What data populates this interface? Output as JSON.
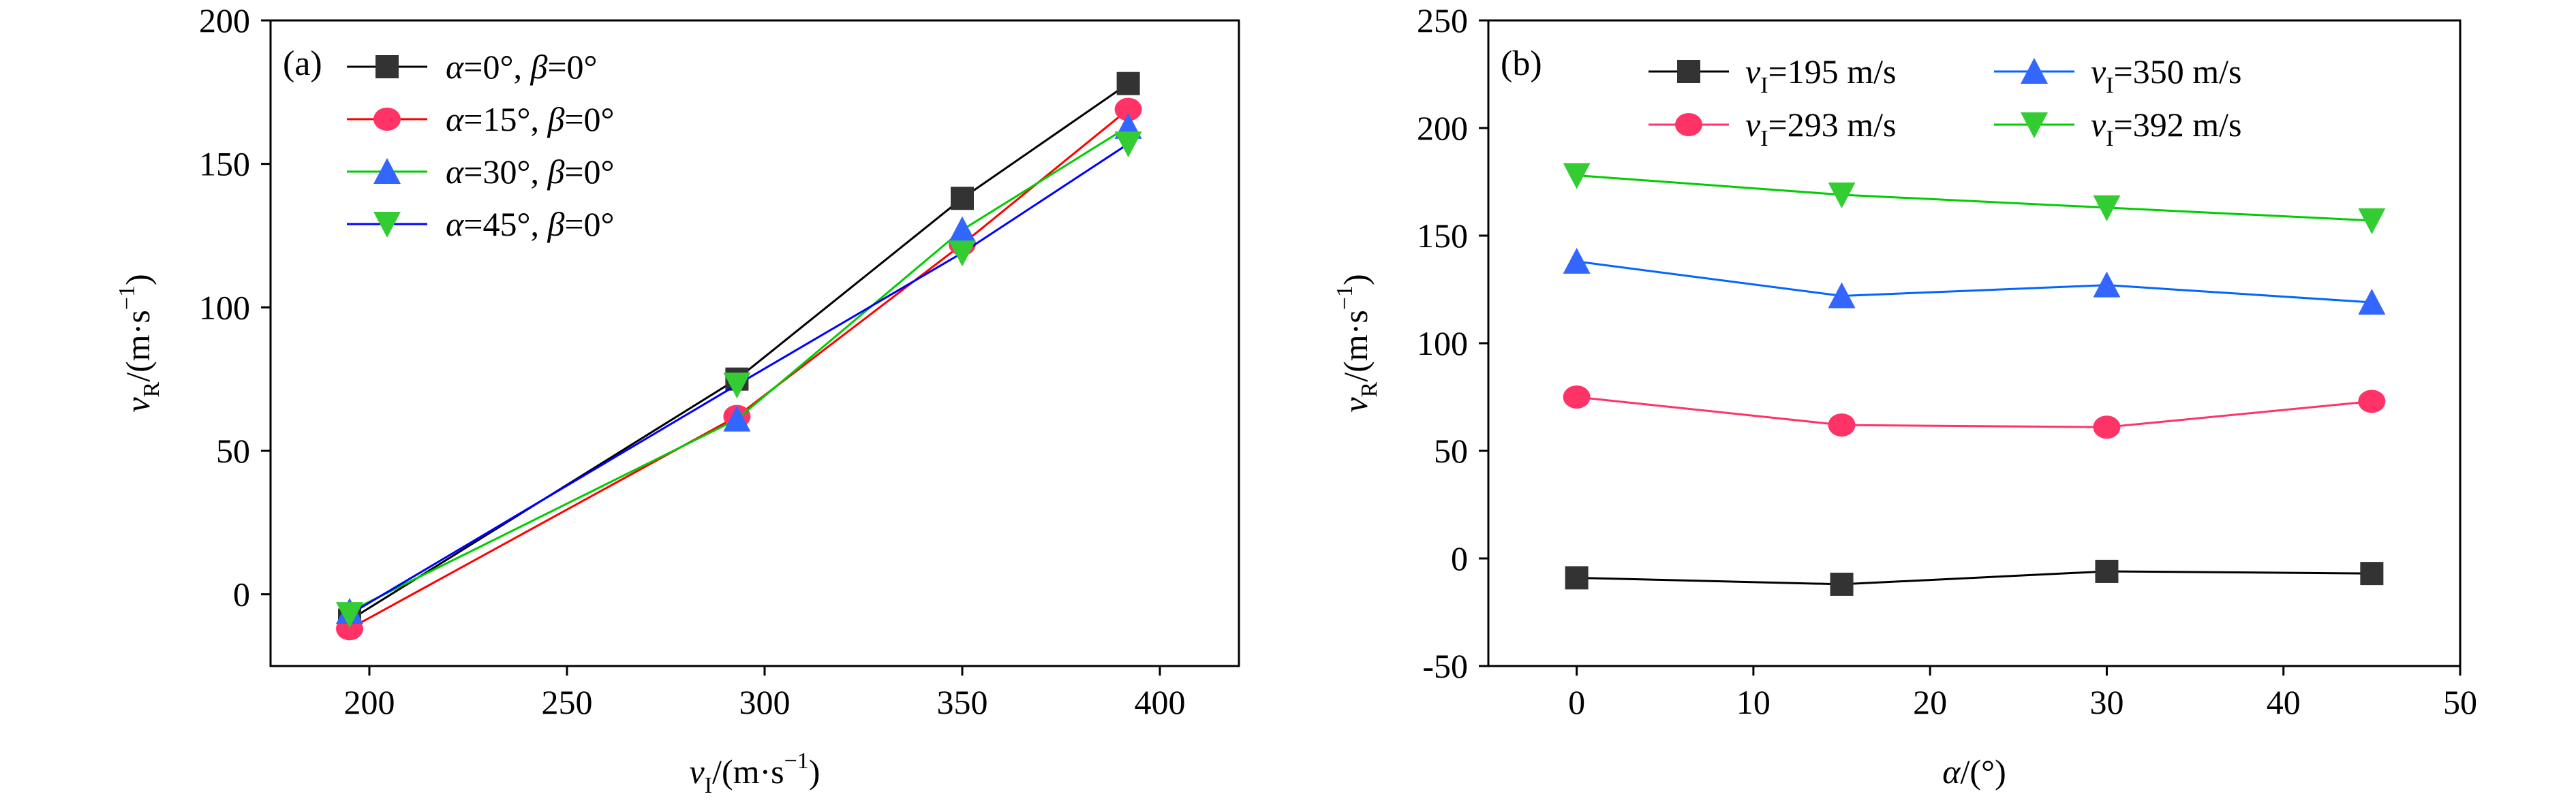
{
  "chart_data": [
    {
      "type": "line",
      "panel_label": "(a)",
      "xlabel": {
        "var": "v",
        "sub": "I",
        "unit": "/(m·s",
        "exp": "−1",
        "close": ")"
      },
      "ylabel": {
        "var": "v",
        "sub": "R",
        "unit": "/(m·s",
        "exp": "−1",
        "close": ")"
      },
      "xlim": [
        175,
        420
      ],
      "ylim": [
        -25,
        200
      ],
      "xticks": [
        200,
        250,
        300,
        350,
        400
      ],
      "yticks": [
        0,
        50,
        100,
        150,
        200
      ],
      "x": [
        195,
        293,
        350,
        392
      ],
      "legend_position": "top-left",
      "series": [
        {
          "name": "α=0°, β=0°",
          "alpha": "α",
          "eq1": "=0°, ",
          "beta": "β",
          "eq2": "=0°",
          "color": "#000000",
          "marker": "square",
          "values": [
            -9,
            75,
            138,
            178
          ]
        },
        {
          "name": "α=15°, β=0°",
          "alpha": "α",
          "eq1": "=15°, ",
          "beta": "β",
          "eq2": "=0°",
          "color": "#ff0000",
          "marker": "circle",
          "values": [
            -12,
            62,
            122,
            169
          ]
        },
        {
          "name": "α=30°, β=0°",
          "alpha": "α",
          "eq1": "=30°, ",
          "beta": "β",
          "eq2": "=0°",
          "color": "#00cc00",
          "marker": "triangle-up",
          "values": [
            -6,
            61,
            127,
            163
          ]
        },
        {
          "name": "α=45°, β=0°",
          "alpha": "α",
          "eq1": "=45°, ",
          "beta": "β",
          "eq2": "=0°",
          "color": "#0000ff",
          "marker": "triangle-down",
          "values": [
            -7,
            73,
            119,
            157
          ]
        }
      ],
      "marker_colors": {
        "red": "#ff3366",
        "green": "#33cc33",
        "blue": "#3366ff"
      }
    },
    {
      "type": "line",
      "panel_label": "(b)",
      "xlabel": {
        "var": "α",
        "unit": "/(°)"
      },
      "ylabel": {
        "var": "v",
        "sub": "R",
        "unit": "/(m·s",
        "exp": "−1",
        "close": ")"
      },
      "xlim": [
        -5,
        50
      ],
      "ylim": [
        -50,
        250
      ],
      "xticks": [
        0,
        10,
        20,
        30,
        40,
        50
      ],
      "yticks": [
        -50,
        0,
        50,
        100,
        150,
        200,
        250
      ],
      "x": [
        0,
        15,
        30,
        45
      ],
      "legend_position": "top",
      "series": [
        {
          "name": "vI=195 m/s",
          "var": "v",
          "sub": "I",
          "val": "=195 m/s",
          "color": "#000000",
          "marker_color": "#333333",
          "marker": "square",
          "values": [
            -9,
            -12,
            -6,
            -7
          ]
        },
        {
          "name": "vI=293 m/s",
          "var": "v",
          "sub": "I",
          "val": "=293 m/s",
          "color": "#ff3366",
          "marker_color": "#ff3366",
          "marker": "circle",
          "values": [
            75,
            62,
            61,
            73
          ]
        },
        {
          "name": "vI=350 m/s",
          "var": "v",
          "sub": "I",
          "val": "=350 m/s",
          "color": "#0066ff",
          "marker_color": "#3366ff",
          "marker": "triangle-up",
          "values": [
            138,
            122,
            127,
            119
          ]
        },
        {
          "name": "vI=392 m/s",
          "var": "v",
          "sub": "I",
          "val": "=392 m/s",
          "color": "#00cc00",
          "marker_color": "#33cc33",
          "marker": "triangle-down",
          "values": [
            178,
            169,
            163,
            157
          ]
        }
      ]
    }
  ]
}
